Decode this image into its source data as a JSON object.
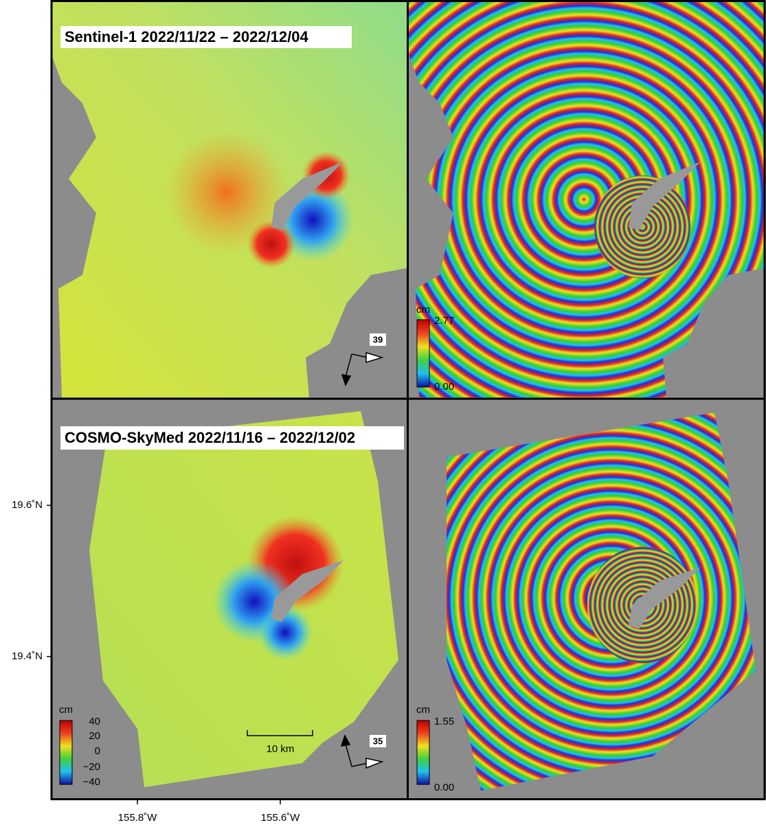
{
  "panels": [
    {
      "title": "Sentinel-1 2022/11/22 – 2022/12/04",
      "track": "39"
    },
    {
      "colorbar": {
        "unit": "cm",
        "ticks": [
          "2.77",
          "0.00"
        ]
      }
    },
    {
      "title": "COSMO-SkyMed 2022/11/16 – 2022/12/02",
      "track": "35",
      "scale_bar": "10 km",
      "colorbar": {
        "unit": "cm",
        "ticks": [
          "40",
          "20",
          "0",
          "−20",
          "−40"
        ]
      }
    },
    {
      "colorbar": {
        "unit": "cm",
        "ticks": [
          "1.55",
          "0.00"
        ]
      }
    }
  ],
  "axes": {
    "y_ticks": [
      "19.6˚N",
      "19.4˚N"
    ],
    "x_ticks": [
      "155.8˚W",
      "155.6˚W"
    ]
  }
}
